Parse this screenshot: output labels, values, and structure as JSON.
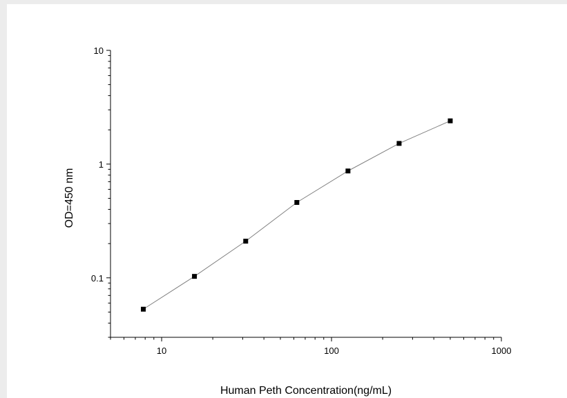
{
  "chart_data": {
    "type": "scatter",
    "title": "",
    "xlabel": "Human Peth Concentration(ng/mL)",
    "ylabel": "OD=450 nm",
    "xscale": "log",
    "yscale": "log",
    "xlim": [
      5,
      1000
    ],
    "ylim": [
      0.03,
      10
    ],
    "x_tick_labels": [
      "10",
      "100",
      "1000"
    ],
    "y_tick_labels": [
      "0.1",
      "1",
      "10"
    ],
    "grid": false,
    "series": [
      {
        "x": [
          7.8,
          15.6,
          31.25,
          62.5,
          125,
          250,
          500
        ],
        "y": [
          0.053,
          0.103,
          0.21,
          0.46,
          0.87,
          1.52,
          2.4
        ],
        "marker": "square",
        "line": "connected",
        "color": "#000000",
        "line_color": "#808080"
      }
    ]
  }
}
